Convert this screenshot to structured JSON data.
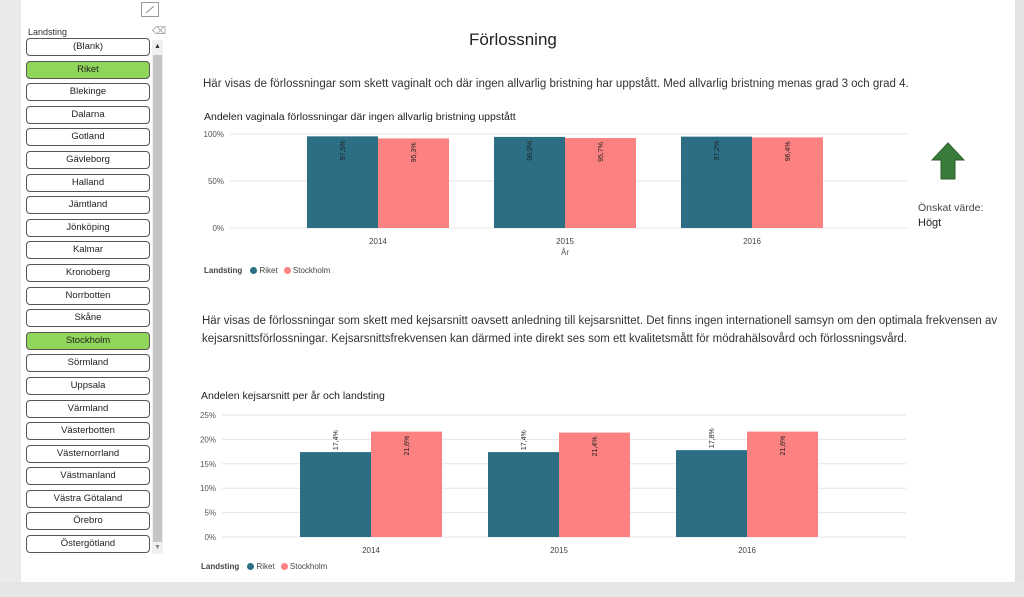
{
  "colors": {
    "riket": "#2c6e84",
    "stockholm": "#fb8280",
    "selected": "#90d65a",
    "arrow": "#3a7d3a"
  },
  "slicer": {
    "title": "Landsting",
    "items": [
      {
        "label": "(Blank)",
        "selected": false
      },
      {
        "label": "Riket",
        "selected": true
      },
      {
        "label": "Blekinge",
        "selected": false
      },
      {
        "label": "Dalarna",
        "selected": false
      },
      {
        "label": "Gotland",
        "selected": false
      },
      {
        "label": "Gävleborg",
        "selected": false
      },
      {
        "label": "Halland",
        "selected": false
      },
      {
        "label": "Jämtland",
        "selected": false
      },
      {
        "label": "Jönköping",
        "selected": false
      },
      {
        "label": "Kalmar",
        "selected": false
      },
      {
        "label": "Kronoberg",
        "selected": false
      },
      {
        "label": "Norrbotten",
        "selected": false
      },
      {
        "label": "Skåne",
        "selected": false
      },
      {
        "label": "Stockholm",
        "selected": true
      },
      {
        "label": "Sörmland",
        "selected": false
      },
      {
        "label": "Uppsala",
        "selected": false
      },
      {
        "label": "Värmland",
        "selected": false
      },
      {
        "label": "Västerbotten",
        "selected": false
      },
      {
        "label": "Västernorrland",
        "selected": false
      },
      {
        "label": "Västmanland",
        "selected": false
      },
      {
        "label": "Västra Götaland",
        "selected": false
      },
      {
        "label": "Örebro",
        "selected": false
      },
      {
        "label": "Östergötland",
        "selected": false
      }
    ]
  },
  "page": {
    "title": "Förlossning",
    "desc1": "Här visas de förlossningar som skett vaginalt och där ingen allvarlig bristning har uppstått. Med allvarlig bristning menas grad 3 och grad 4.",
    "desc2": "Här visas de förlossningar som skett med kejsarsnitt oavsett anledning till kejsarsnittet. Det finns ingen internationell samsyn om den optimala frekvensen av kejsarsnittsförlossningar. Kejsarsnittsfrekvensen kan därmed inte direkt ses som ett kvalitetsmått för mödrahälsovård och förlossningsvård."
  },
  "kpi": {
    "label": "Önskat värde:",
    "value": "Högt"
  },
  "legend": {
    "title": "Landsting",
    "riket": "Riket",
    "stockholm": "Stockholm"
  },
  "chart_data": [
    {
      "type": "bar",
      "title": "Andelen vaginala förlossningar där ingen allvarlig bristning uppstått",
      "categories": [
        "2014",
        "2015",
        "2016"
      ],
      "xlabel": "År",
      "ylabel": "",
      "ylim": [
        0,
        100
      ],
      "yticks": [
        0,
        50,
        100
      ],
      "tick_labels": [
        "0%",
        "50%",
        "100%"
      ],
      "series": [
        {
          "name": "Riket",
          "values": [
            97.5,
            96.9,
            97.2
          ],
          "labels": [
            "97,5%",
            "96,9%",
            "97,2%"
          ]
        },
        {
          "name": "Stockholm",
          "values": [
            95.3,
            95.7,
            96.4
          ],
          "labels": [
            "95,3%",
            "95,7%",
            "96,4%"
          ]
        }
      ]
    },
    {
      "type": "bar",
      "title": "Andelen kejsarsnitt per år och landsting",
      "categories": [
        "2014",
        "2015",
        "2016"
      ],
      "xlabel": "",
      "ylabel": "",
      "ylim": [
        0,
        25
      ],
      "yticks": [
        0,
        5,
        10,
        15,
        20,
        25
      ],
      "tick_labels": [
        "0%",
        "5%",
        "10%",
        "15%",
        "20%",
        "25%"
      ],
      "series": [
        {
          "name": "Riket",
          "values": [
            17.4,
            17.4,
            17.8
          ],
          "labels": [
            "17,4%",
            "17,4%",
            "17,8%"
          ]
        },
        {
          "name": "Stockholm",
          "values": [
            21.6,
            21.4,
            21.6
          ],
          "labels": [
            "21,6%",
            "21,4%",
            "21,6%"
          ]
        }
      ]
    }
  ]
}
